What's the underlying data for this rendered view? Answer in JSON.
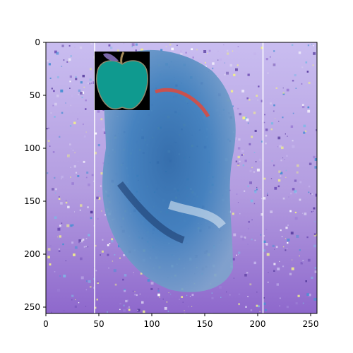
{
  "figure": {
    "background": "#ffffff",
    "axis_color": "#000000",
    "x_ticks": [
      "0",
      "50",
      "100",
      "150",
      "200",
      "250"
    ],
    "y_ticks": [
      "0",
      "50",
      "100",
      "150",
      "200",
      "250"
    ],
    "x_range": [
      0,
      256
    ],
    "y_range": [
      0,
      256
    ],
    "y_direction": "downward",
    "vertical_lines_x": [
      46,
      205
    ],
    "vertical_line_color": "#ffffff"
  },
  "image": {
    "description_colors": {
      "lavender": "#b9a7e6",
      "purple": "#8a62c8",
      "blue": "#3f6fb0",
      "teal_inset": "#0f9a8f"
    }
  },
  "inset": {
    "icon": "apple-icon",
    "background": "#000000",
    "fill": "#0f9a8f",
    "stem_color": "#a58a5a",
    "leaf_color": "#7a66a8",
    "x_range": [
      46,
      98
    ],
    "y_range": [
      8,
      63
    ]
  }
}
